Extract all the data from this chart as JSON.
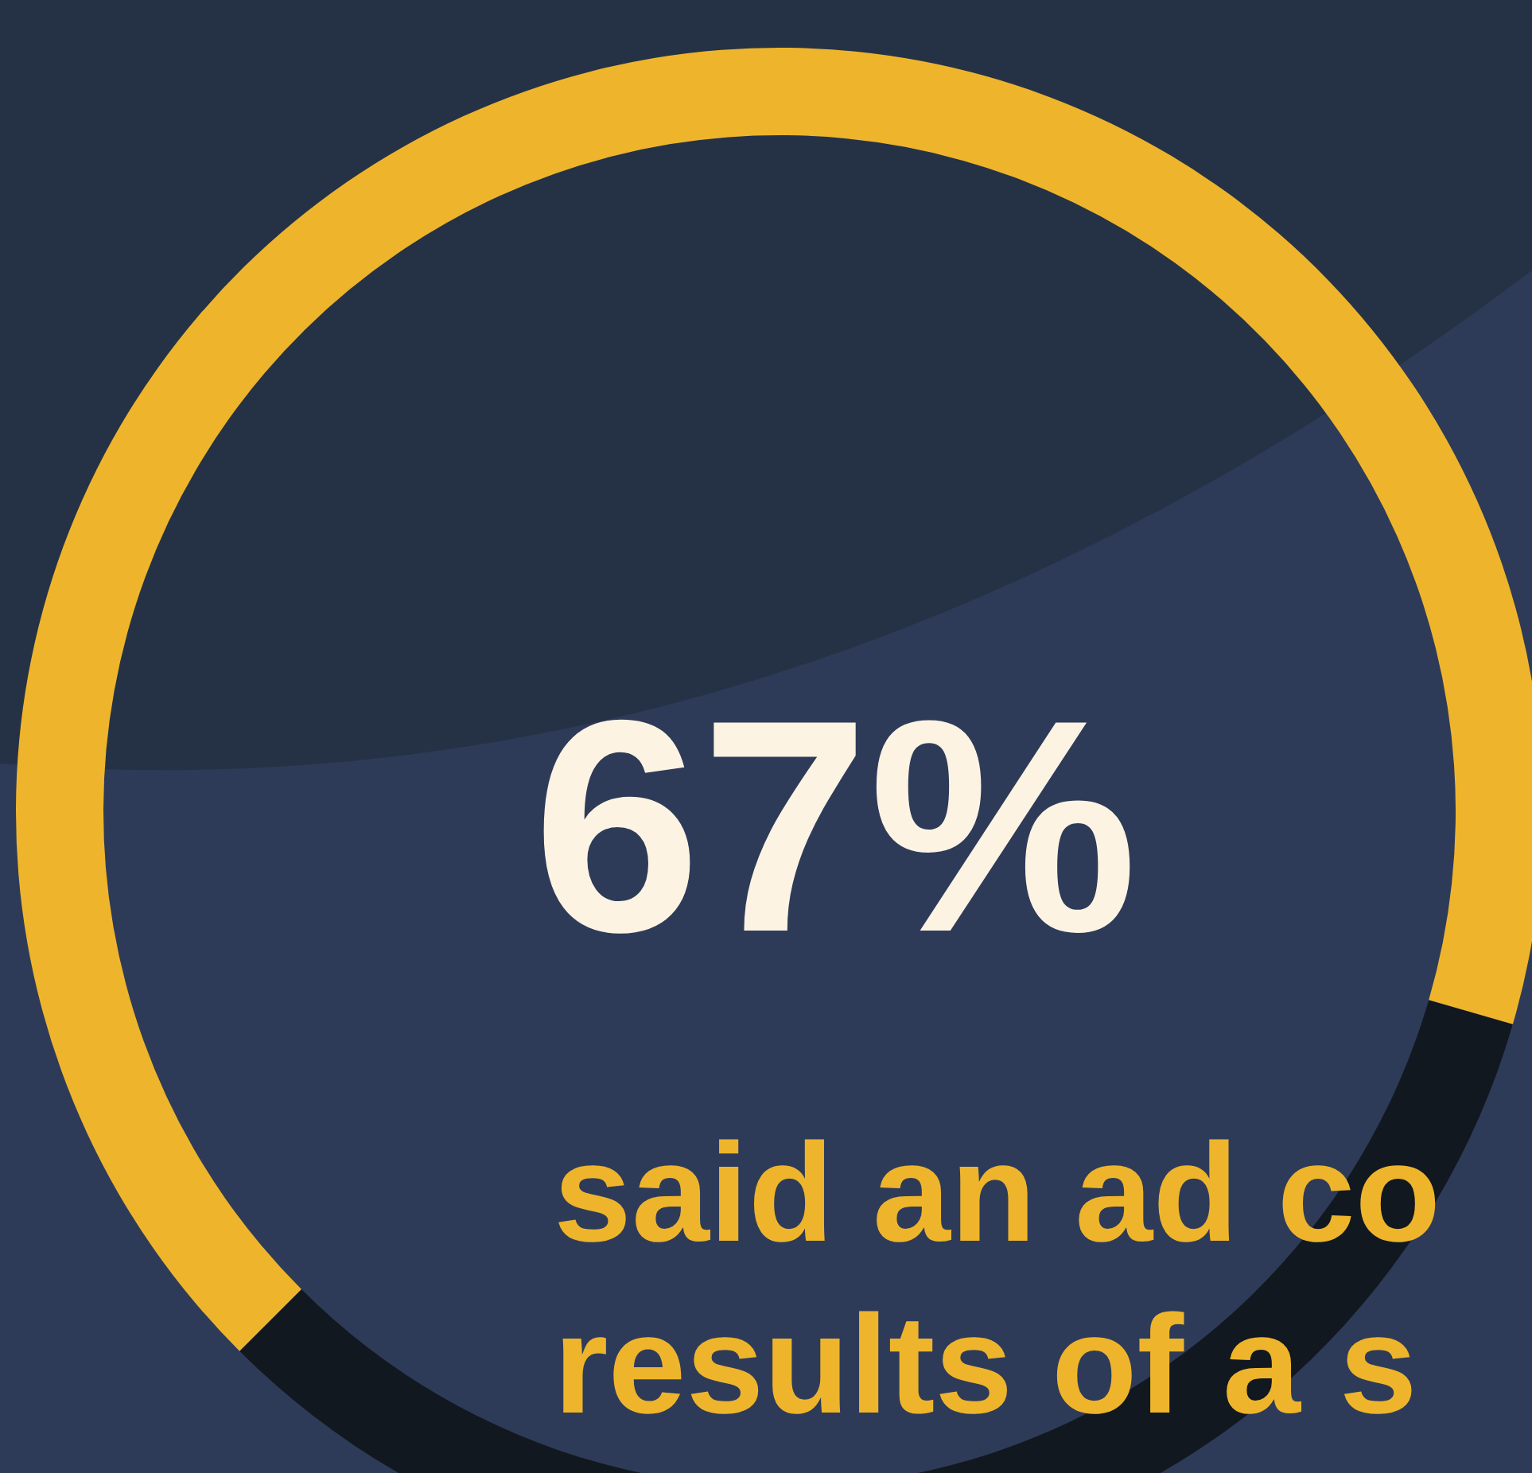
{
  "chart_data": {
    "type": "donut",
    "title": "67%",
    "categories": [
      null,
      null
    ],
    "values": [
      67,
      33
    ],
    "colors": [
      "#eeb52c",
      "#111820"
    ],
    "annotations": [
      "said an ad co",
      "results of a s"
    ]
  }
}
